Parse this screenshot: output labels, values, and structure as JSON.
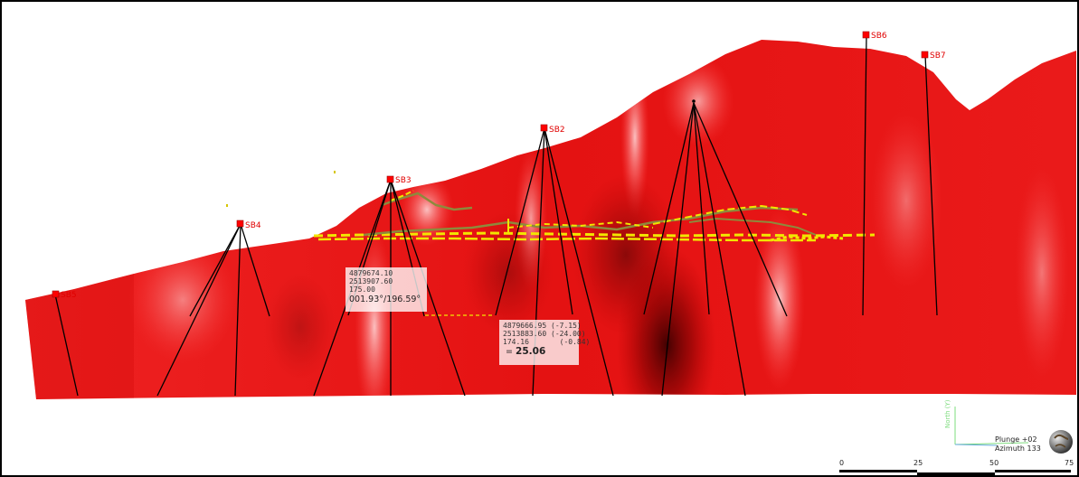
{
  "drillholes": [
    {
      "id": "SB5",
      "label": "SB5"
    },
    {
      "id": "SB4",
      "label": "SB4"
    },
    {
      "id": "SB3",
      "label": "SB3"
    },
    {
      "id": "SB2",
      "label": "SB2"
    },
    {
      "id": "SB6",
      "label": "SB6"
    },
    {
      "id": "SB7",
      "label": "SB7"
    }
  ],
  "tooltip_point": {
    "northing": "4879674.10",
    "easting": "2513907.60",
    "elevation": "175.00",
    "bearing": "001.93°/196.59°"
  },
  "tooltip_measure": {
    "northing": "4879666.95",
    "d_northing": "(-7.15)",
    "easting": "2513883.60",
    "d_easting": "(-24.00)",
    "elevation": "174.16",
    "d_elevation": "(-0.84)",
    "distance_prefix": "=",
    "distance": "25.06"
  },
  "orientation": {
    "axis_label": "North (Y)",
    "plunge": "Plunge +02",
    "azimuth": "Azimuth 133"
  },
  "scale": {
    "ticks": [
      "0",
      "25",
      "50",
      "75"
    ]
  },
  "colors": {
    "surface": "#e81010",
    "dark": "#8a0000",
    "vein_yellow": "#f2e600",
    "vein_olive": "#8d8a3c",
    "collar": "#ff0000"
  }
}
